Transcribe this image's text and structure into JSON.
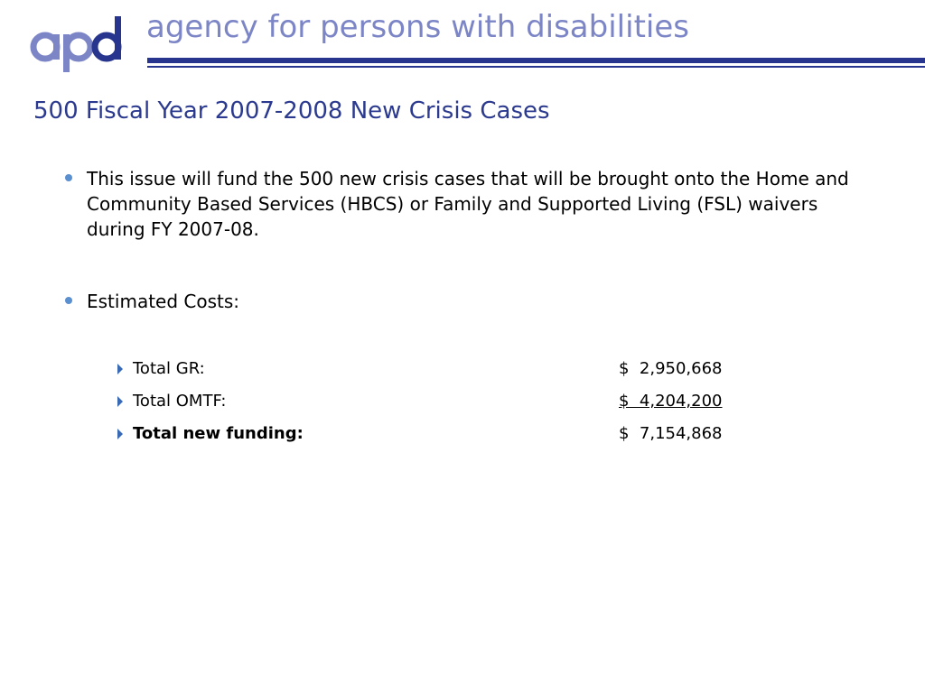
{
  "header": {
    "logo_text": "apd",
    "agency_name": "agency for persons with disabilities",
    "brand_color": "#28358f",
    "accent_color": "#7c86c6"
  },
  "slide": {
    "title": "500 Fiscal Year 2007-2008 New Crisis Cases",
    "bullets": [
      {
        "text": "This issue will fund the 500 new crisis cases that will be brought onto the Home and Community Based Services (HBCS) or Family and Supported Living (FSL) waivers during FY 2007-08."
      },
      {
        "text": "Estimated Costs:"
      }
    ],
    "costs": [
      {
        "label": "Total GR:",
        "amount": "$  2,950,668"
      },
      {
        "label": "Total OMTF:",
        "amount": "$  4,204,200"
      },
      {
        "label": "Total new funding:",
        "amount": "$  7,154,868"
      }
    ]
  }
}
